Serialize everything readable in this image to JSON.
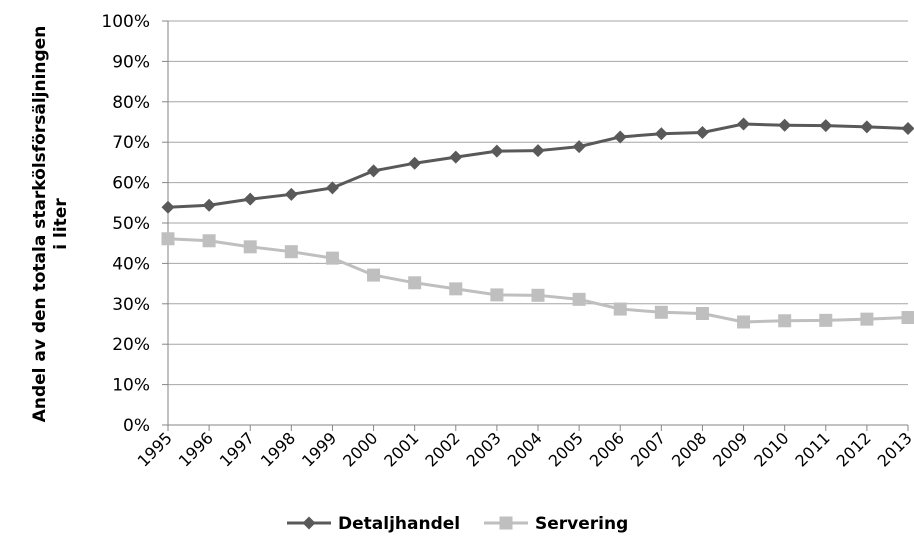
{
  "chart_data": {
    "type": "line",
    "title": "",
    "xlabel": "",
    "ylabel_line1": "Andel av den totala starkölsförsäljningen",
    "ylabel_line2": "i liter",
    "categories": [
      "1995",
      "1996",
      "1997",
      "1998",
      "1999",
      "2000",
      "2001",
      "2002",
      "2003",
      "2004",
      "2005",
      "2006",
      "2007",
      "2008",
      "2009",
      "2010",
      "2011",
      "2012",
      "2013"
    ],
    "ylim": [
      0,
      100
    ],
    "y_tick_labels": [
      "0%",
      "10%",
      "20%",
      "30%",
      "40%",
      "50%",
      "60%",
      "70%",
      "80%",
      "90%",
      "100%"
    ],
    "grid": true,
    "legend_position": "bottom",
    "series": [
      {
        "name": "Detaljhandel",
        "color": "#595959",
        "marker": "diamond",
        "values": [
          53.9,
          54.4,
          55.9,
          57.1,
          58.7,
          62.9,
          64.8,
          66.3,
          67.8,
          67.9,
          68.9,
          71.3,
          72.1,
          72.4,
          74.5,
          74.2,
          74.1,
          73.8,
          73.4
        ]
      },
      {
        "name": "Servering",
        "color": "#bfbfbf",
        "marker": "square",
        "values": [
          46.1,
          45.6,
          44.1,
          42.9,
          41.3,
          37.1,
          35.2,
          33.7,
          32.2,
          32.1,
          31.1,
          28.7,
          27.9,
          27.6,
          25.5,
          25.8,
          25.9,
          26.2,
          26.6
        ]
      }
    ]
  }
}
